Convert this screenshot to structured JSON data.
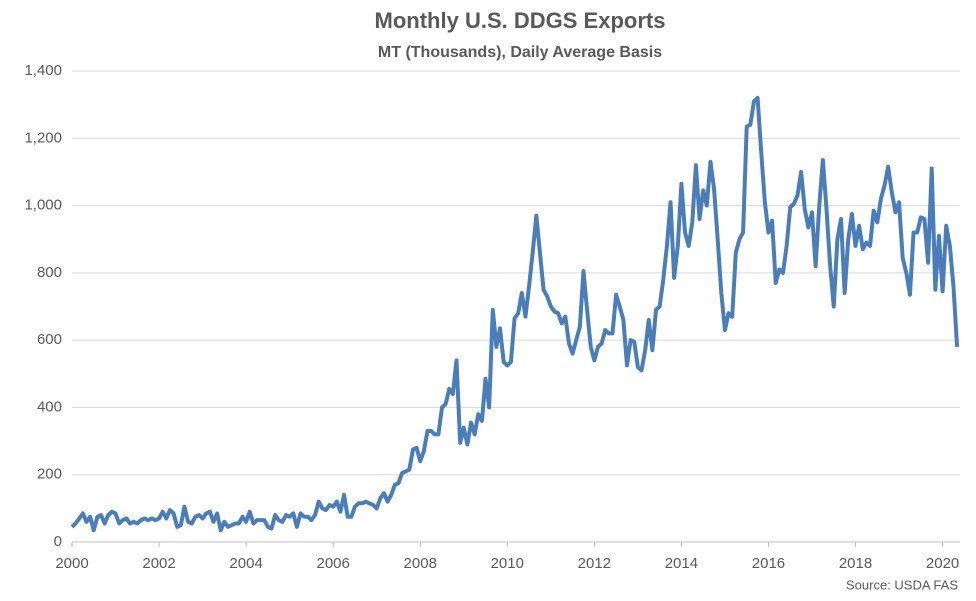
{
  "chart_data": {
    "type": "line",
    "title": "Monthly U.S. DDGS Exports",
    "subtitle": "MT (Thousands), Daily Average Basis",
    "source": "Source: USDA FAS",
    "x": [
      2000,
      2000.083,
      2000.167,
      2000.25,
      2000.333,
      2000.417,
      2000.5,
      2000.583,
      2000.667,
      2000.75,
      2000.833,
      2000.917,
      2001,
      2001.083,
      2001.167,
      2001.25,
      2001.333,
      2001.417,
      2001.5,
      2001.583,
      2001.667,
      2001.75,
      2001.833,
      2001.917,
      2002,
      2002.083,
      2002.167,
      2002.25,
      2002.333,
      2002.417,
      2002.5,
      2002.583,
      2002.667,
      2002.75,
      2002.833,
      2002.917,
      2003,
      2003.083,
      2003.167,
      2003.25,
      2003.333,
      2003.417,
      2003.5,
      2003.583,
      2003.667,
      2003.75,
      2003.833,
      2003.917,
      2004,
      2004.083,
      2004.167,
      2004.25,
      2004.333,
      2004.417,
      2004.5,
      2004.583,
      2004.667,
      2004.75,
      2004.833,
      2004.917,
      2005,
      2005.083,
      2005.167,
      2005.25,
      2005.333,
      2005.417,
      2005.5,
      2005.583,
      2005.667,
      2005.75,
      2005.833,
      2005.917,
      2006,
      2006.083,
      2006.167,
      2006.25,
      2006.333,
      2006.417,
      2006.5,
      2006.583,
      2006.667,
      2006.75,
      2006.833,
      2006.917,
      2007,
      2007.083,
      2007.167,
      2007.25,
      2007.333,
      2007.417,
      2007.5,
      2007.583,
      2007.667,
      2007.75,
      2007.833,
      2007.917,
      2008,
      2008.083,
      2008.167,
      2008.25,
      2008.333,
      2008.417,
      2008.5,
      2008.583,
      2008.667,
      2008.75,
      2008.833,
      2008.917,
      2009,
      2009.083,
      2009.167,
      2009.25,
      2009.333,
      2009.417,
      2009.5,
      2009.583,
      2009.667,
      2009.75,
      2009.833,
      2009.917,
      2010,
      2010.083,
      2010.167,
      2010.25,
      2010.333,
      2010.417,
      2010.5,
      2010.583,
      2010.667,
      2010.75,
      2010.833,
      2010.917,
      2011,
      2011.083,
      2011.167,
      2011.25,
      2011.333,
      2011.417,
      2011.5,
      2011.583,
      2011.667,
      2011.75,
      2011.833,
      2011.917,
      2012,
      2012.083,
      2012.167,
      2012.25,
      2012.333,
      2012.417,
      2012.5,
      2012.583,
      2012.667,
      2012.75,
      2012.833,
      2012.917,
      2013,
      2013.083,
      2013.167,
      2013.25,
      2013.333,
      2013.417,
      2013.5,
      2013.583,
      2013.667,
      2013.75,
      2013.833,
      2013.917,
      2014,
      2014.083,
      2014.167,
      2014.25,
      2014.333,
      2014.417,
      2014.5,
      2014.583,
      2014.667,
      2014.75,
      2014.833,
      2014.917,
      2015,
      2015.083,
      2015.167,
      2015.25,
      2015.333,
      2015.417,
      2015.5,
      2015.583,
      2015.667,
      2015.75,
      2015.833,
      2015.917,
      2016,
      2016.083,
      2016.167,
      2016.25,
      2016.333,
      2016.417,
      2016.5,
      2016.583,
      2016.667,
      2016.75,
      2016.833,
      2016.917,
      2017,
      2017.083,
      2017.167,
      2017.25,
      2017.333,
      2017.417,
      2017.5,
      2017.583,
      2017.667,
      2017.75,
      2017.833,
      2017.917,
      2018,
      2018.083,
      2018.167,
      2018.25,
      2018.333,
      2018.417,
      2018.5,
      2018.583,
      2018.667,
      2018.75,
      2018.833,
      2018.917,
      2019,
      2019.083,
      2019.167,
      2019.25,
      2019.333,
      2019.417,
      2019.5,
      2019.583,
      2019.667,
      2019.75,
      2019.833,
      2019.917,
      2020,
      2020.083,
      2020.167,
      2020.25,
      2020.333
    ],
    "series": [
      {
        "color": "#4a7ebb",
        "values": [
          45,
          55,
          70,
          85,
          60,
          75,
          35,
          75,
          80,
          55,
          80,
          90,
          85,
          55,
          65,
          70,
          55,
          60,
          55,
          65,
          70,
          65,
          70,
          65,
          70,
          90,
          70,
          95,
          85,
          45,
          50,
          105,
          60,
          55,
          75,
          80,
          70,
          85,
          90,
          60,
          85,
          35,
          60,
          45,
          50,
          55,
          55,
          75,
          60,
          90,
          55,
          65,
          65,
          65,
          45,
          40,
          80,
          65,
          60,
          80,
          75,
          85,
          45,
          85,
          75,
          75,
          65,
          80,
          120,
          100,
          95,
          110,
          105,
          120,
          90,
          140,
          75,
          75,
          105,
          115,
          115,
          120,
          115,
          110,
          100,
          130,
          145,
          120,
          140,
          170,
          175,
          205,
          210,
          215,
          275,
          280,
          240,
          270,
          330,
          330,
          320,
          320,
          400,
          410,
          455,
          440,
          540,
          295,
          340,
          290,
          355,
          320,
          380,
          360,
          485,
          400,
          690,
          580,
          635,
          535,
          525,
          535,
          665,
          680,
          740,
          670,
          760,
          860,
          970,
          860,
          750,
          730,
          700,
          685,
          680,
          650,
          670,
          590,
          560,
          600,
          640,
          805,
          690,
          580,
          540,
          580,
          590,
          630,
          620,
          620,
          735,
          700,
          660,
          525,
          600,
          595,
          520,
          510,
          570,
          660,
          570,
          690,
          700,
          780,
          880,
          1010,
          785,
          880,
          1065,
          920,
          880,
          950,
          1120,
          960,
          1045,
          1000,
          1130,
          1050,
          900,
          740,
          630,
          680,
          670,
          860,
          900,
          920,
          1235,
          1240,
          1310,
          1320,
          1160,
          1010,
          920,
          955,
          770,
          810,
          800,
          880,
          995,
          1005,
          1030,
          1100,
          990,
          935,
          980,
          820,
          1000,
          1135,
          990,
          820,
          700,
          900,
          960,
          740,
          900,
          975,
          880,
          940,
          870,
          890,
          880,
          985,
          950,
          1020,
          1060,
          1115,
          1040,
          980,
          1010,
          845,
          800,
          735,
          920,
          920,
          965,
          960,
          830,
          1110,
          750,
          910,
          745,
          940,
          880,
          760,
          580
        ]
      }
    ],
    "xlim": [
      2000,
      2020.4
    ],
    "xticks": [
      2000,
      2002,
      2004,
      2006,
      2008,
      2010,
      2012,
      2014,
      2016,
      2018,
      2020
    ],
    "ylim": [
      0,
      1400
    ],
    "yticks": [
      0,
      200,
      400,
      600,
      800,
      {
        "value": 1000,
        "label": "1,000"
      },
      {
        "value": 1200,
        "label": "1,200"
      },
      {
        "value": 1400,
        "label": "1,400"
      }
    ],
    "grid": true
  }
}
